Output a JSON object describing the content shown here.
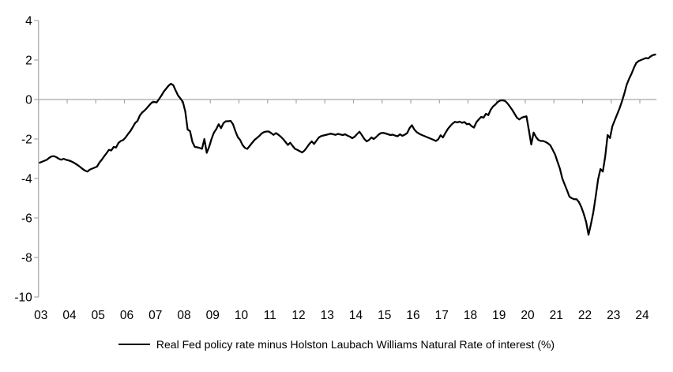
{
  "chart_data": {
    "type": "line",
    "title": "",
    "legend": {
      "label": "Real Fed policy rate minus Holston Laubach Williams Natural Rate of interest (%)",
      "position": "bottom-center",
      "marker": "solid-line"
    },
    "x": {
      "start": "2003-01",
      "end": "2024-07",
      "frequency": "monthly",
      "tick_labels": [
        "03",
        "04",
        "05",
        "06",
        "07",
        "08",
        "09",
        "10",
        "11",
        "12",
        "13",
        "14",
        "15",
        "16",
        "17",
        "18",
        "19",
        "20",
        "21",
        "22",
        "23",
        "24"
      ]
    },
    "y": {
      "tick_labels": [
        "4",
        "2",
        "0",
        "-2",
        "-4",
        "-6",
        "-8",
        "-10"
      ],
      "min": -10,
      "max": 4,
      "zero_gridline": true,
      "grid": "zero-line-only"
    },
    "style": {
      "line_color": "#000000",
      "axis_color": "#a6a6a6",
      "text_color": "#000000"
    },
    "series": [
      {
        "name": "Real Fed policy rate minus Holston Laubach Williams Natural Rate of interest (%)",
        "values": [
          -3.2,
          -3.15,
          -3.1,
          -3.05,
          -2.95,
          -2.88,
          -2.87,
          -2.92,
          -3.0,
          -3.05,
          -3.0,
          -3.05,
          -3.08,
          -3.12,
          -3.18,
          -3.25,
          -3.33,
          -3.42,
          -3.52,
          -3.6,
          -3.65,
          -3.55,
          -3.5,
          -3.45,
          -3.4,
          -3.2,
          -3.05,
          -2.88,
          -2.72,
          -2.55,
          -2.58,
          -2.4,
          -2.43,
          -2.2,
          -2.1,
          -2.05,
          -1.92,
          -1.75,
          -1.6,
          -1.4,
          -1.19,
          -1.08,
          -0.8,
          -0.65,
          -0.55,
          -0.42,
          -0.28,
          -0.15,
          -0.12,
          -0.15,
          0.02,
          0.2,
          0.4,
          0.55,
          0.7,
          0.8,
          0.72,
          0.45,
          0.2,
          0.05,
          -0.12,
          -0.6,
          -1.52,
          -1.6,
          -2.15,
          -2.4,
          -2.42,
          -2.45,
          -2.5,
          -2.0,
          -2.7,
          -2.4,
          -2.0,
          -1.68,
          -1.5,
          -1.25,
          -1.45,
          -1.2,
          -1.1,
          -1.1,
          -1.08,
          -1.25,
          -1.6,
          -1.9,
          -2.05,
          -2.3,
          -2.45,
          -2.5,
          -2.35,
          -2.2,
          -2.05,
          -1.95,
          -1.85,
          -1.72,
          -1.65,
          -1.62,
          -1.62,
          -1.7,
          -1.79,
          -1.7,
          -1.78,
          -1.88,
          -2.0,
          -2.15,
          -2.3,
          -2.19,
          -2.35,
          -2.5,
          -2.55,
          -2.62,
          -2.68,
          -2.58,
          -2.42,
          -2.25,
          -2.12,
          -2.25,
          -2.08,
          -1.92,
          -1.85,
          -1.82,
          -1.79,
          -1.76,
          -1.73,
          -1.76,
          -1.79,
          -1.74,
          -1.77,
          -1.8,
          -1.76,
          -1.83,
          -1.88,
          -1.96,
          -1.88,
          -1.75,
          -1.63,
          -1.8,
          -1.99,
          -2.12,
          -2.05,
          -1.92,
          -2.0,
          -1.9,
          -1.78,
          -1.7,
          -1.69,
          -1.72,
          -1.76,
          -1.8,
          -1.78,
          -1.83,
          -1.86,
          -1.76,
          -1.84,
          -1.78,
          -1.7,
          -1.45,
          -1.3,
          -1.52,
          -1.65,
          -1.73,
          -1.79,
          -1.84,
          -1.89,
          -1.94,
          -1.99,
          -2.04,
          -2.1,
          -2.02,
          -1.81,
          -1.92,
          -1.7,
          -1.5,
          -1.35,
          -1.22,
          -1.13,
          -1.16,
          -1.12,
          -1.18,
          -1.14,
          -1.25,
          -1.23,
          -1.35,
          -1.42,
          -1.15,
          -1.01,
          -0.88,
          -0.92,
          -0.72,
          -0.79,
          -0.52,
          -0.35,
          -0.25,
          -0.12,
          -0.05,
          -0.04,
          -0.07,
          -0.19,
          -0.35,
          -0.52,
          -0.72,
          -0.92,
          -1.01,
          -0.92,
          -0.88,
          -0.85,
          -1.55,
          -2.28,
          -1.67,
          -1.9,
          -2.05,
          -2.1,
          -2.1,
          -2.15,
          -2.22,
          -2.32,
          -2.55,
          -2.79,
          -3.15,
          -3.5,
          -3.99,
          -4.3,
          -4.6,
          -4.92,
          -5.0,
          -5.05,
          -5.05,
          -5.2,
          -5.45,
          -5.79,
          -6.2,
          -6.85,
          -6.32,
          -5.72,
          -4.92,
          -4.05,
          -3.52,
          -3.65,
          -2.88,
          -1.8,
          -1.95,
          -1.35,
          -1.05,
          -0.75,
          -0.45,
          -0.1,
          0.3,
          0.75,
          1.05,
          1.3,
          1.6,
          1.85,
          1.95,
          2.0,
          2.05,
          2.1,
          2.08,
          2.18,
          2.25,
          2.28
        ]
      }
    ]
  }
}
